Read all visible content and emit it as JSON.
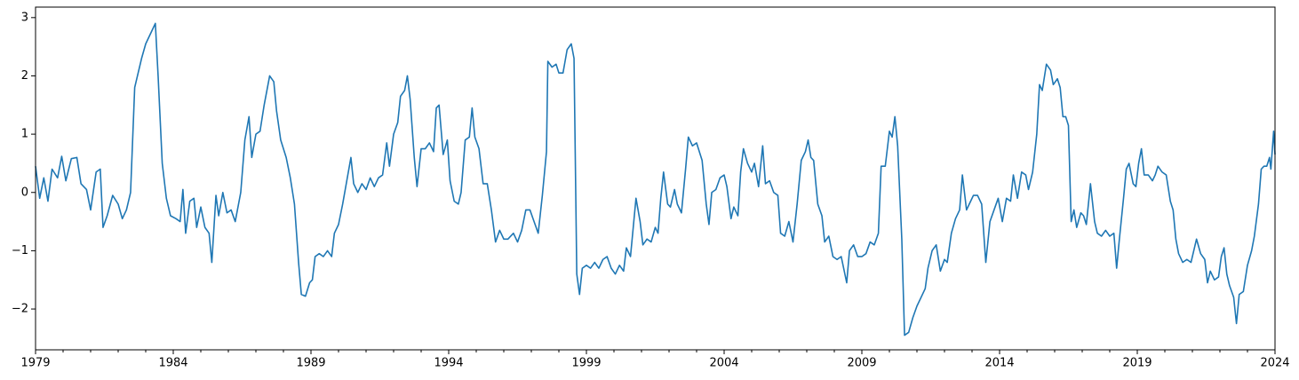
{
  "chart_data": {
    "type": "line",
    "color": "#1f77b4",
    "x": [
      1979.0,
      1979.15,
      1979.3,
      1979.45,
      1979.6,
      1979.8,
      1979.95,
      1980.1,
      1980.3,
      1980.5,
      1980.65,
      1980.85,
      1981.0,
      1981.2,
      1981.35,
      1981.45,
      1981.6,
      1981.8,
      1982.0,
      1982.15,
      1982.3,
      1982.45,
      1982.6,
      1982.7,
      1982.85,
      1983.0,
      1983.2,
      1983.35,
      1983.45,
      1983.6,
      1983.75,
      1983.9,
      1984.1,
      1984.25,
      1984.35,
      1984.45,
      1984.6,
      1984.75,
      1984.85,
      1985.0,
      1985.15,
      1985.3,
      1985.4,
      1985.55,
      1985.65,
      1985.8,
      1985.95,
      1986.1,
      1986.25,
      1986.45,
      1986.6,
      1986.75,
      1986.85,
      1987.0,
      1987.15,
      1987.3,
      1987.5,
      1987.65,
      1987.75,
      1987.9,
      1988.1,
      1988.25,
      1988.4,
      1988.55,
      1988.65,
      1988.8,
      1988.95,
      1989.05,
      1989.15,
      1989.3,
      1989.45,
      1989.6,
      1989.75,
      1989.85,
      1990.0,
      1990.15,
      1990.3,
      1990.45,
      1990.55,
      1990.7,
      1990.85,
      1991.0,
      1991.15,
      1991.3,
      1991.45,
      1991.6,
      1991.75,
      1991.85,
      1992.0,
      1992.15,
      1992.25,
      1992.4,
      1992.5,
      1992.6,
      1992.75,
      1992.85,
      1993.0,
      1993.15,
      1993.3,
      1993.45,
      1993.55,
      1993.65,
      1993.8,
      1993.95,
      1994.05,
      1994.2,
      1994.35,
      1994.45,
      1994.6,
      1994.75,
      1994.85,
      1994.95,
      1995.1,
      1995.25,
      1995.4,
      1995.55,
      1995.7,
      1995.85,
      1996.0,
      1996.15,
      1996.35,
      1996.5,
      1996.65,
      1996.8,
      1996.95,
      1997.1,
      1997.25,
      1997.4,
      1997.55,
      1997.6,
      1997.75,
      1997.9,
      1998.0,
      1998.15,
      1998.3,
      1998.45,
      1998.55,
      1998.65,
      1998.75,
      1998.85,
      1999.0,
      1999.15,
      1999.3,
      1999.45,
      1999.6,
      1999.75,
      1999.9,
      2000.05,
      2000.2,
      2000.35,
      2000.45,
      2000.6,
      2000.7,
      2000.8,
      2000.95,
      2001.05,
      2001.2,
      2001.35,
      2001.5,
      2001.6,
      2001.7,
      2001.8,
      2001.95,
      2002.05,
      2002.2,
      2002.3,
      2002.45,
      2002.6,
      2002.7,
      2002.85,
      2003.0,
      2003.2,
      2003.35,
      2003.45,
      2003.55,
      2003.7,
      2003.85,
      2004.0,
      2004.1,
      2004.25,
      2004.35,
      2004.5,
      2004.6,
      2004.7,
      2004.85,
      2005.0,
      2005.1,
      2005.25,
      2005.4,
      2005.5,
      2005.65,
      2005.8,
      2005.95,
      2006.05,
      2006.2,
      2006.35,
      2006.5,
      2006.65,
      2006.8,
      2006.95,
      2007.05,
      2007.15,
      2007.25,
      2007.4,
      2007.55,
      2007.65,
      2007.8,
      2007.95,
      2008.1,
      2008.25,
      2008.45,
      2008.55,
      2008.7,
      2008.85,
      2009.0,
      2009.15,
      2009.3,
      2009.45,
      2009.6,
      2009.7,
      2009.85,
      2010.0,
      2010.1,
      2010.2,
      2010.3,
      2010.45,
      2010.55,
      2010.7,
      2010.85,
      2011.0,
      2011.15,
      2011.3,
      2011.4,
      2011.55,
      2011.7,
      2011.85,
      2012.0,
      2012.1,
      2012.25,
      2012.4,
      2012.55,
      2012.65,
      2012.8,
      2012.95,
      2013.05,
      2013.2,
      2013.35,
      2013.5,
      2013.65,
      2013.8,
      2013.95,
      2014.1,
      2014.25,
      2014.4,
      2014.5,
      2014.65,
      2014.8,
      2014.95,
      2015.05,
      2015.2,
      2015.35,
      2015.45,
      2015.55,
      2015.7,
      2015.85,
      2015.95,
      2016.1,
      2016.2,
      2016.3,
      2016.4,
      2016.5,
      2016.6,
      2016.7,
      2016.8,
      2016.95,
      2017.05,
      2017.15,
      2017.3,
      2017.45,
      2017.55,
      2017.7,
      2017.85,
      2018.0,
      2018.15,
      2018.25,
      2018.35,
      2018.5,
      2018.6,
      2018.7,
      2018.85,
      2018.95,
      2019.05,
      2019.15,
      2019.25,
      2019.4,
      2019.55,
      2019.65,
      2019.75,
      2019.9,
      2020.05,
      2020.2,
      2020.3,
      2020.4,
      2020.5,
      2020.65,
      2020.8,
      2020.95,
      2021.05,
      2021.15,
      2021.3,
      2021.45,
      2021.55,
      2021.65,
      2021.8,
      2021.95,
      2022.05,
      2022.15,
      2022.25,
      2022.35,
      2022.5,
      2022.6,
      2022.7,
      2022.85,
      2023.0,
      2023.15,
      2023.25,
      2023.4,
      2023.5,
      2023.6,
      2023.7,
      2023.8,
      2023.85,
      2023.95,
      2024.0
    ],
    "values": [
      0.45,
      -0.1,
      0.25,
      -0.15,
      0.4,
      0.25,
      0.62,
      0.2,
      0.58,
      0.6,
      0.15,
      0.05,
      -0.3,
      0.35,
      0.4,
      -0.6,
      -0.4,
      -0.05,
      -0.2,
      -0.45,
      -0.3,
      0.0,
      1.8,
      2.0,
      2.3,
      2.55,
      2.75,
      2.9,
      2.0,
      0.5,
      -0.1,
      -0.4,
      -0.45,
      -0.5,
      0.05,
      -0.7,
      -0.15,
      -0.1,
      -0.6,
      -0.25,
      -0.6,
      -0.7,
      -1.2,
      -0.05,
      -0.4,
      0.0,
      -0.35,
      -0.3,
      -0.5,
      0.0,
      0.9,
      1.3,
      0.6,
      1.0,
      1.05,
      1.5,
      2.0,
      1.9,
      1.4,
      0.9,
      0.6,
      0.25,
      -0.2,
      -1.2,
      -1.75,
      -1.78,
      -1.55,
      -1.5,
      -1.1,
      -1.05,
      -1.1,
      -1.0,
      -1.1,
      -0.7,
      -0.55,
      -0.2,
      0.2,
      0.6,
      0.15,
      0.0,
      0.15,
      0.05,
      0.25,
      0.1,
      0.25,
      0.3,
      0.85,
      0.45,
      1.0,
      1.2,
      1.65,
      1.75,
      2.0,
      1.6,
      0.6,
      0.1,
      0.75,
      0.75,
      0.85,
      0.7,
      1.45,
      1.5,
      0.65,
      0.9,
      0.2,
      -0.15,
      -0.2,
      0.0,
      0.9,
      0.95,
      1.45,
      0.95,
      0.75,
      0.15,
      0.15,
      -0.3,
      -0.85,
      -0.65,
      -0.8,
      -0.8,
      -0.7,
      -0.85,
      -0.65,
      -0.3,
      -0.3,
      -0.5,
      -0.7,
      -0.05,
      0.7,
      2.25,
      2.15,
      2.2,
      2.05,
      2.05,
      2.45,
      2.55,
      2.3,
      -1.4,
      -1.75,
      -1.3,
      -1.25,
      -1.3,
      -1.2,
      -1.3,
      -1.15,
      -1.1,
      -1.3,
      -1.4,
      -1.25,
      -1.35,
      -0.95,
      -1.1,
      -0.6,
      -0.1,
      -0.5,
      -0.9,
      -0.8,
      -0.85,
      -0.6,
      -0.7,
      -0.1,
      0.35,
      -0.2,
      -0.25,
      0.05,
      -0.2,
      -0.35,
      0.4,
      0.95,
      0.8,
      0.85,
      0.55,
      -0.2,
      -0.55,
      0.0,
      0.05,
      0.25,
      0.3,
      0.1,
      -0.45,
      -0.25,
      -0.4,
      0.35,
      0.75,
      0.5,
      0.35,
      0.5,
      0.1,
      0.8,
      0.15,
      0.2,
      0.0,
      -0.05,
      -0.7,
      -0.75,
      -0.5,
      -0.85,
      -0.2,
      0.55,
      0.7,
      0.9,
      0.6,
      0.55,
      -0.2,
      -0.4,
      -0.85,
      -0.75,
      -1.1,
      -1.15,
      -1.1,
      -1.55,
      -1.0,
      -0.9,
      -1.1,
      -1.1,
      -1.05,
      -0.85,
      -0.9,
      -0.7,
      0.45,
      0.45,
      1.05,
      0.95,
      1.3,
      0.8,
      -0.8,
      -2.45,
      -2.4,
      -2.15,
      -1.95,
      -1.8,
      -1.65,
      -1.3,
      -1.0,
      -0.9,
      -1.35,
      -1.15,
      -1.2,
      -0.7,
      -0.45,
      -0.3,
      0.3,
      -0.3,
      -0.15,
      -0.05,
      -0.05,
      -0.2,
      -1.2,
      -0.5,
      -0.3,
      -0.1,
      -0.5,
      -0.1,
      -0.15,
      0.3,
      -0.1,
      0.35,
      0.3,
      0.05,
      0.35,
      1.0,
      1.85,
      1.75,
      2.2,
      2.1,
      1.85,
      1.95,
      1.8,
      1.3,
      1.3,
      1.15,
      -0.5,
      -0.3,
      -0.6,
      -0.35,
      -0.4,
      -0.55,
      0.15,
      -0.5,
      -0.7,
      -0.75,
      -0.65,
      -0.75,
      -0.7,
      -1.3,
      -0.8,
      -0.1,
      0.4,
      0.5,
      0.15,
      0.1,
      0.5,
      0.75,
      0.3,
      0.3,
      0.2,
      0.3,
      0.45,
      0.35,
      0.3,
      -0.15,
      -0.3,
      -0.8,
      -1.05,
      -1.2,
      -1.15,
      -1.2,
      -1.0,
      -0.8,
      -1.05,
      -1.15,
      -1.55,
      -1.35,
      -1.5,
      -1.45,
      -1.1,
      -0.95,
      -1.4,
      -1.6,
      -1.8,
      -2.25,
      -1.75,
      -1.7,
      -1.25,
      -1.0,
      -0.75,
      -0.2,
      0.4,
      0.45,
      0.45,
      0.6,
      0.4,
      1.05,
      0.65
    ],
    "xlim": [
      1979,
      2024
    ],
    "ylim": [
      -2.7,
      3.18
    ],
    "xticks": [
      1979,
      1984,
      1989,
      1994,
      1999,
      2004,
      2009,
      2014,
      2019,
      2024
    ],
    "xminorticks": [
      1980,
      1981,
      1982,
      1983,
      1985,
      1986,
      1987,
      1988,
      1990,
      1991,
      1992,
      1993,
      1995,
      1996,
      1997,
      1998,
      2000,
      2001,
      2002,
      2003,
      2005,
      2006,
      2007,
      2008,
      2010,
      2011,
      2012,
      2013,
      2015,
      2016,
      2017,
      2018,
      2020,
      2021,
      2022,
      2023
    ],
    "yticks": [
      {
        "value": -2,
        "label": "−2"
      },
      {
        "value": -1,
        "label": "−1"
      },
      0,
      1,
      2,
      3
    ],
    "grid": false
  }
}
